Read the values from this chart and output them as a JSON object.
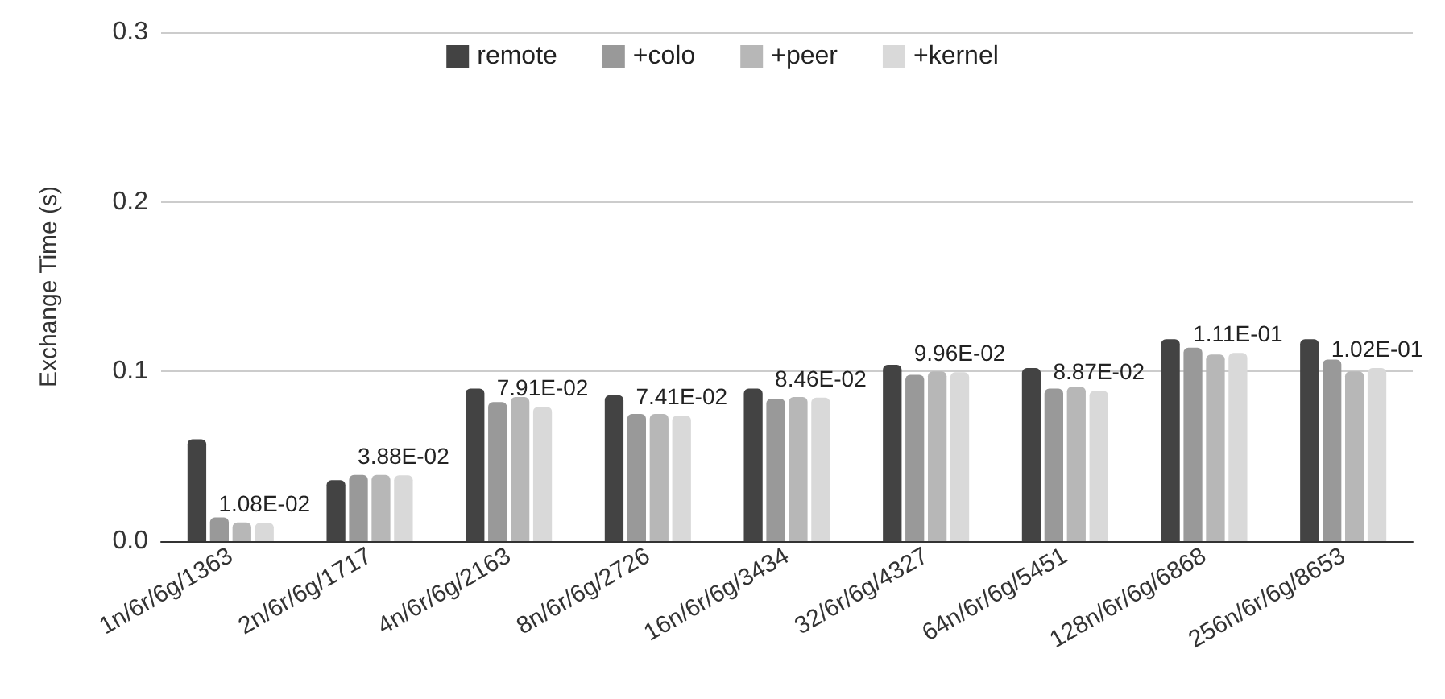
{
  "chart_data": {
    "type": "bar",
    "ylabel": "Exchange Time (s)",
    "categories": [
      "1n/6r/6g/1363",
      "2n/6r/6g/1717",
      "4n/6r/6g/2163",
      "8n/6r/6g/2726",
      "16n/6r/6g/3434",
      "32/6r/6g/4327",
      "64n/6r/6g/5451",
      "128n/6r/6g/6868",
      "256n/6r/6g/8653"
    ],
    "series": [
      {
        "name": "remote",
        "color": "#434343",
        "values": [
          0.06,
          0.036,
          0.09,
          0.086,
          0.09,
          0.104,
          0.102,
          0.119,
          0.119
        ]
      },
      {
        "name": "+colo",
        "color": "#999999",
        "values": [
          0.014,
          0.039,
          0.082,
          0.075,
          0.084,
          0.098,
          0.09,
          0.114,
          0.107
        ]
      },
      {
        "name": "+peer",
        "color": "#b7b7b7",
        "values": [
          0.011,
          0.039,
          0.085,
          0.075,
          0.085,
          0.1,
          0.091,
          0.11,
          0.1
        ]
      },
      {
        "name": "+kernel",
        "color": "#d9d9d9",
        "values": [
          0.0108,
          0.0388,
          0.0791,
          0.0741,
          0.0846,
          0.0996,
          0.0887,
          0.111,
          0.102
        ],
        "value_labels": [
          "1.08E-02",
          "3.88E-02",
          "7.91E-02",
          "7.41E-02",
          "8.46E-02",
          "9.96E-02",
          "8.87E-02",
          "1.11E-01",
          "1.02E-01"
        ]
      }
    ],
    "ylim": [
      0,
      0.3
    ],
    "yticks": [
      {
        "value": 0,
        "label": "0.0"
      },
      0.1,
      0.2,
      0.3
    ],
    "grid": "y",
    "legend": "top"
  }
}
